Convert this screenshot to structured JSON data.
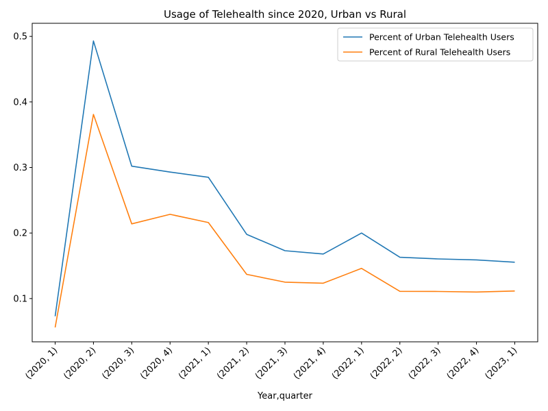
{
  "chart_data": {
    "type": "line",
    "title": "Usage of Telehealth since 2020, Urban vs Rural",
    "xlabel": "Year,quarter",
    "ylabel": "",
    "categories": [
      "(2020, 1)",
      "(2020, 2)",
      "(2020, 3)",
      "(2020, 4)",
      "(2021, 1)",
      "(2021, 2)",
      "(2021, 3)",
      "(2021, 4)",
      "(2022, 1)",
      "(2022, 2)",
      "(2022, 3)",
      "(2022, 4)",
      "(2023, 1)"
    ],
    "yticks": [
      "0.1",
      "0.2",
      "0.3",
      "0.4",
      "0.5"
    ],
    "ylim": [
      0.034,
      0.52
    ],
    "grid": false,
    "legend_position": "top-right",
    "series": [
      {
        "name": "Percent of Urban Telehealth Users",
        "color": "#1f77b4",
        "values": [
          0.073,
          0.493,
          0.302,
          0.293,
          0.285,
          0.198,
          0.173,
          0.168,
          0.2,
          0.163,
          0.1605,
          0.159,
          0.1555
        ]
      },
      {
        "name": "Percent of Rural Telehealth Users",
        "color": "#ff7f0e",
        "values": [
          0.056,
          0.381,
          0.214,
          0.2285,
          0.216,
          0.137,
          0.125,
          0.1235,
          0.146,
          0.111,
          0.1108,
          0.11,
          0.1115
        ]
      }
    ]
  }
}
